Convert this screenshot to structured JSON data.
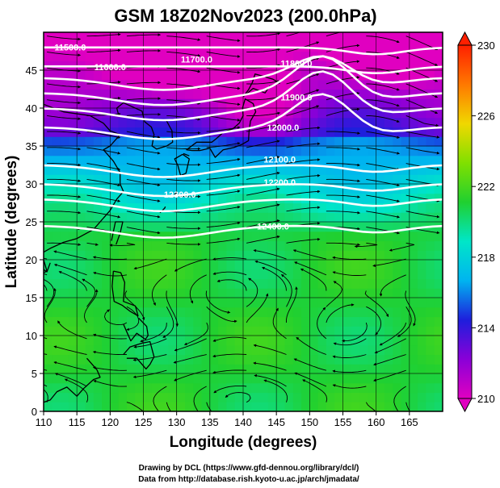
{
  "title": "GSM 18Z02Nov2023 (200.0hPa)",
  "x_axis": {
    "label": "Longitude (degrees)",
    "ticks": [
      "110",
      "115",
      "120",
      "125",
      "130",
      "135",
      "140",
      "145",
      "150",
      "155",
      "160",
      "165"
    ]
  },
  "y_axis": {
    "label": "Latitude  (degrees)",
    "ticks": [
      "0",
      "5",
      "10",
      "15",
      "20",
      "25",
      "30",
      "35",
      "40",
      "45"
    ]
  },
  "colorbar": {
    "ticks": [
      "210",
      "214",
      "218",
      "222",
      "226",
      "230"
    ],
    "range": [
      210,
      230
    ],
    "colors": [
      "#e000c0",
      "#8a00d8",
      "#1e1edc",
      "#00b4f0",
      "#00e6c8",
      "#20d030",
      "#80e000",
      "#f0d800",
      "#ff7800",
      "#ff2000"
    ]
  },
  "contours": [
    {
      "label": "11500.0",
      "lon": 114,
      "lat": 47.6
    },
    {
      "label": "11600.0",
      "lon": 120,
      "lat": 45.0
    },
    {
      "label": "11700.0",
      "lon": 133,
      "lat": 46.0
    },
    {
      "label": "11800.0",
      "lon": 148,
      "lat": 45.5
    },
    {
      "label": "11900.0",
      "lon": 148,
      "lat": 41.0
    },
    {
      "label": "12000.0",
      "lon": 146,
      "lat": 37.0
    },
    {
      "label": "12100.0",
      "lon": 145.5,
      "lat": 32.8
    },
    {
      "label": "12200.0",
      "lon": 145.5,
      "lat": 29.8
    },
    {
      "label": "12300.0",
      "lon": 130.5,
      "lat": 28.2
    },
    {
      "label": "12400.0",
      "lon": 144.5,
      "lat": 24.0
    }
  ],
  "credits": [
    "Drawing by DCL (https://www.gfd-dennou.org/library/dcl/)",
    "Data from http://database.rish.kyoto-u.ac.jp/arch/jmadata/"
  ],
  "chart_data": {
    "type": "heatmap",
    "title": "GSM 18Z02Nov2023 (200.0hPa)",
    "xlabel": "Longitude (degrees)",
    "ylabel": "Latitude  (degrees)",
    "xlim": [
      110,
      170
    ],
    "ylim": [
      0,
      50
    ],
    "colorbar_range": [
      210,
      230
    ],
    "contour_levels": [
      11500,
      11600,
      11700,
      11800,
      11900,
      12000,
      12100,
      12200,
      12300,
      12400
    ]
  }
}
